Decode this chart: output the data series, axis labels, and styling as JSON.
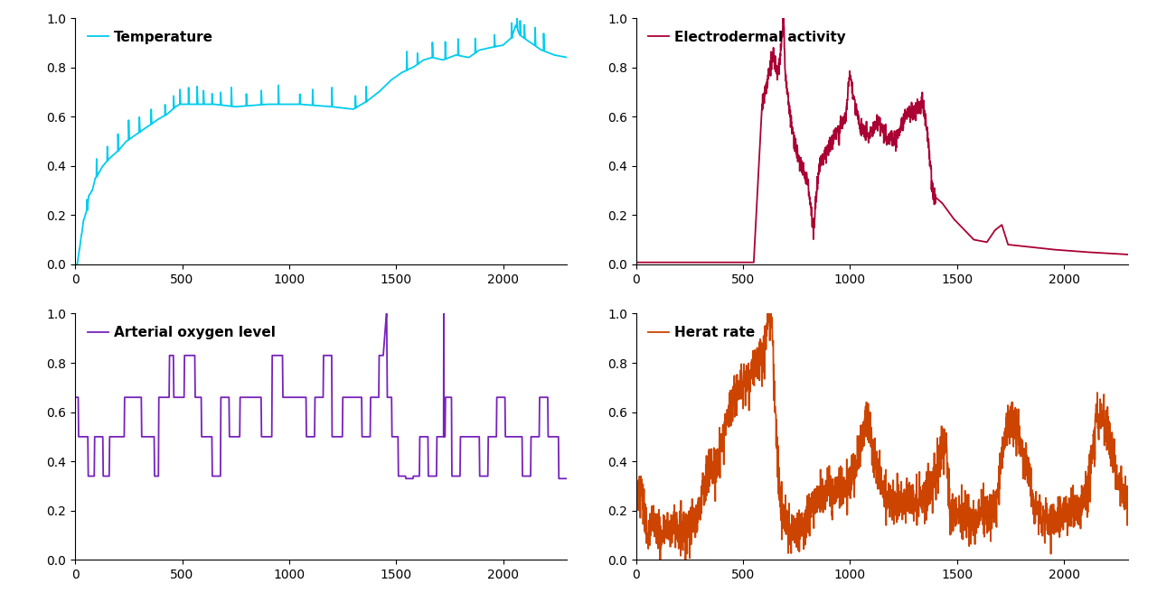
{
  "title_top_left": "Temperature",
  "title_top_right": "Electrodermal activity",
  "title_bot_left": "Arterial oxygen level",
  "title_bot_right": "Herat rate",
  "color_temp": "#00CCEE",
  "color_eda": "#AA0033",
  "color_spo2": "#7722BB",
  "color_hr": "#CC4400",
  "xlim": [
    0,
    2300
  ],
  "ylim": [
    0,
    1
  ],
  "xticks": [
    0,
    500,
    1000,
    1500,
    2000
  ],
  "yticks": [
    0,
    0.2,
    0.4,
    0.6,
    0.8,
    1
  ],
  "legend_fontsize": 11,
  "tick_fontsize": 10,
  "linewidth": 1.3
}
